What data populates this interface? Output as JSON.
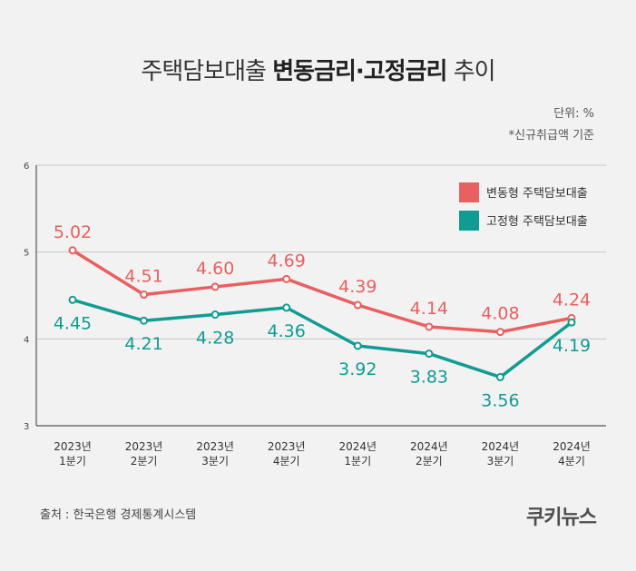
{
  "header": {
    "title_prefix": "주택담보대출 ",
    "title_bold": "변동금리·고정금리",
    "title_suffix": " 추이",
    "unit": "단위: %",
    "note": "*신규취급액 기준"
  },
  "footer": {
    "source": "출처 :  한국은행 경제통계시스템",
    "logo": "쿠키뉴스"
  },
  "colors": {
    "variable": "#e8605f",
    "fixed": "#109c92",
    "axis": "#555555",
    "grid": "#c8c8c8"
  },
  "chart_data": {
    "type": "line",
    "categories": [
      "2023년 1분기",
      "2023년 2분기",
      "2023년 3분기",
      "2023년 4분기",
      "2024년 1분기",
      "2024년 2분기",
      "2024년 3분기",
      "2024년 4분기"
    ],
    "category_lines": [
      [
        "2023년",
        "1분기"
      ],
      [
        "2023년",
        "2분기"
      ],
      [
        "2023년",
        "3분기"
      ],
      [
        "2023년",
        "4분기"
      ],
      [
        "2024년",
        "1분기"
      ],
      [
        "2024년",
        "2분기"
      ],
      [
        "2024년",
        "3분기"
      ],
      [
        "2024년",
        "4분기"
      ]
    ],
    "series": [
      {
        "name": "변동형 주택담보대출",
        "color": "#e8605f",
        "values": [
          5.02,
          4.51,
          4.6,
          4.69,
          4.39,
          4.14,
          4.08,
          4.24
        ],
        "labels": [
          "5.02",
          "4.51",
          "4.60",
          "4.69",
          "4.39",
          "4.14",
          "4.08",
          "4.24"
        ]
      },
      {
        "name": "고정형 주택담보대출",
        "color": "#109c92",
        "values": [
          4.45,
          4.21,
          4.28,
          4.36,
          3.92,
          3.83,
          3.56,
          4.19
        ],
        "labels": [
          "4.45",
          "4.21",
          "4.28",
          "4.36",
          "3.92",
          "3.83",
          "3.56",
          "4.19"
        ]
      }
    ],
    "yticks": [
      "3",
      "4",
      "5",
      "6"
    ],
    "ylim": [
      3,
      6
    ],
    "grid": true,
    "legend": "top-right"
  }
}
